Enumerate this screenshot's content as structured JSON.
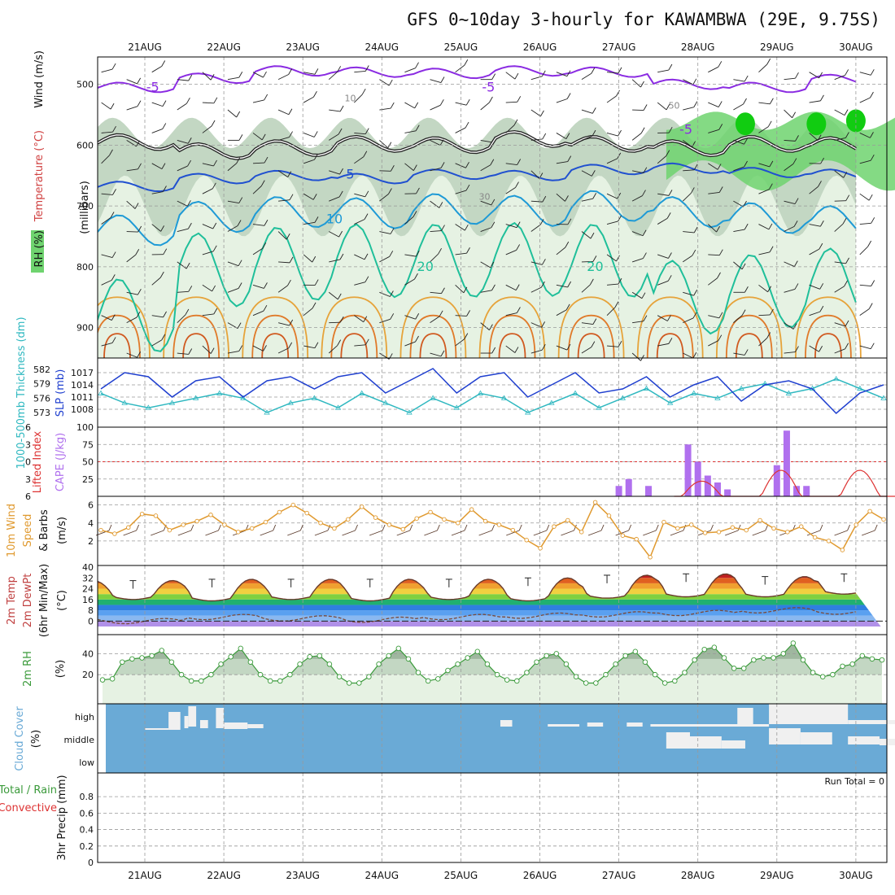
{
  "title": "GFS 0~10day 3-hourly for KAWAMBWA (29E, 9.75S)",
  "dates": [
    "21AUG",
    "22AUG",
    "23AUG",
    "24AUG",
    "25AUG",
    "26AUG",
    "27AUG",
    "28AUG",
    "29AUG",
    "30AUG"
  ],
  "colors": {
    "rh_green_light": "#e6f2e3",
    "rh_green_mid": "#c3d7c3",
    "rh_green_dark": "#9fb79f",
    "rh_green_bright": "#6fd36f",
    "rh_green_max": "#11cc11",
    "slp": "#1f3fcf",
    "thickness": "#2fb8c0",
    "cape": "#b070ee",
    "lifted": "#dd3333",
    "wind10": "#e09a30",
    "rh2m": "#3a9a3a",
    "cloud_bg": "#6aaad6",
    "cloud_fg": "#f0f0f0"
  },
  "chart_data": [
    {
      "type": "contour",
      "panel": "upper_air",
      "ylabel": "(millibars)",
      "ylim": [
        950,
        450
      ],
      "yticks": [
        500,
        600,
        700,
        800,
        900
      ],
      "legend_labels": [
        "Wind (m/s)",
        "Temperature (°C)",
        "RH (%)"
      ],
      "rh_contour_labels": [
        "10",
        "30",
        "50"
      ],
      "temperature_labels": [
        "-5",
        "-5",
        "-5",
        "5",
        "10",
        "20",
        "20"
      ],
      "isotherms": [
        {
          "label": "-5",
          "level": [
            505,
            490,
            478,
            480,
            482,
            478,
            480,
            500,
            505,
            492
          ]
        },
        {
          "label": "0",
          "level": [
            595,
            610,
            605,
            598,
            600,
            590,
            598,
            605,
            598,
            600
          ]
        },
        {
          "label": "5",
          "level": [
            668,
            655,
            650,
            655,
            648,
            650,
            640,
            638,
            645,
            648
          ]
        },
        {
          "label": "10",
          "level": [
            740,
            718,
            710,
            712,
            705,
            708,
            700,
            710,
            720,
            725
          ]
        },
        {
          "label": "20",
          "level": [
            880,
            805,
            795,
            790,
            790,
            788,
            790,
            850,
            840,
            830
          ]
        }
      ]
    },
    {
      "type": "line",
      "panel": "slp_thickness",
      "series": [
        {
          "name": "SLP (mb)",
          "yticks": [
            1008,
            1011,
            1014,
            1017
          ],
          "values": [
            1013,
            1017,
            1016,
            1011,
            1015,
            1016,
            1011,
            1015,
            1016,
            1013,
            1016,
            1017,
            1012,
            1015,
            1018,
            1012,
            1016,
            1017,
            1011,
            1014,
            1017,
            1012,
            1013,
            1016,
            1011,
            1014,
            1016,
            1010,
            1014,
            1015,
            1013,
            1007,
            1012,
            1014
          ]
        },
        {
          "name": "1000-500mb Thickness (dm)",
          "yticks": [
            573,
            576,
            579,
            582
          ],
          "values": [
            577,
            575,
            574,
            575,
            576,
            577,
            576,
            573,
            575,
            576,
            574,
            577,
            575,
            573,
            576,
            574,
            577,
            576,
            573,
            575,
            577,
            574,
            576,
            578,
            575,
            577,
            576,
            578,
            579,
            577,
            578,
            580,
            578,
            576
          ]
        }
      ]
    },
    {
      "type": "bar",
      "panel": "cape_lifted",
      "series": [
        {
          "name": "CAPE (J/kg)",
          "yticks": [
            25,
            50,
            75,
            100
          ],
          "bars": [
            {
              "x": "27AUG 12",
              "v": 15
            },
            {
              "x": "27AUG 15",
              "v": 25
            },
            {
              "x": "27AUG 21",
              "v": 15
            },
            {
              "x": "28AUG 09",
              "v": 75
            },
            {
              "x": "28AUG 12",
              "v": 50
            },
            {
              "x": "28AUG 15",
              "v": 30
            },
            {
              "x": "28AUG 18",
              "v": 20
            },
            {
              "x": "28AUG 21",
              "v": 10
            },
            {
              "x": "29AUG 12",
              "v": 45
            },
            {
              "x": "29AUG 15",
              "v": 95
            },
            {
              "x": "29AUG 18",
              "v": 15
            },
            {
              "x": "29AUG 21",
              "v": 15
            }
          ]
        },
        {
          "name": "Lifted Index",
          "yticks": [
            -6,
            -3,
            0,
            3,
            6
          ],
          "dashed_zero": 0
        }
      ]
    },
    {
      "type": "line",
      "panel": "wind10m",
      "ylabel": "10m Wind Speed & Barbs (m/s)",
      "yticks": [
        2,
        4,
        6
      ],
      "values": [
        3.2,
        2.8,
        3.5,
        5.0,
        4.8,
        3.2,
        3.8,
        4.2,
        4.9,
        3.8,
        3.0,
        3.4,
        4.1,
        5.2,
        6.0,
        5.1,
        4.0,
        3.4,
        4.4,
        5.8,
        4.6,
        3.8,
        3.3,
        4.5,
        5.2,
        4.4,
        4.0,
        5.5,
        4.2,
        3.8,
        3.2,
        2.1,
        1.2,
        3.6,
        4.3,
        3.0,
        6.3,
        4.8,
        2.6,
        2.2,
        0.2,
        4.1,
        3.4,
        3.8,
        2.9,
        3.0,
        3.5,
        3.2,
        4.3,
        3.4,
        3.0,
        3.6,
        2.4,
        2.0,
        1.0,
        3.8,
        5.3,
        4.4
      ]
    },
    {
      "type": "area",
      "panel": "temp2m",
      "ylabel": "2m Temp / 2m DewPt (6hr Min/Max) (°C)",
      "yticks": [
        0,
        8,
        16,
        24,
        32,
        40
      ],
      "temp_min": [
        18,
        17,
        18,
        17,
        18,
        17,
        19,
        20,
        20,
        22
      ],
      "temp_max": [
        30,
        31,
        31,
        31,
        31,
        32,
        34,
        35,
        33,
        35
      ],
      "dewpoint_values": [
        0,
        3,
        2,
        1,
        3,
        4,
        5,
        6,
        8,
        7
      ]
    },
    {
      "type": "area",
      "panel": "rh2m",
      "ylabel": "2m RH (%)",
      "yticks": [
        20,
        40
      ],
      "values": [
        15,
        16,
        32,
        35,
        36,
        38,
        43,
        32,
        20,
        14,
        14,
        20,
        30,
        37,
        45,
        32,
        20,
        14,
        14,
        20,
        30,
        37,
        38,
        30,
        18,
        12,
        12,
        18,
        30,
        38,
        45,
        35,
        22,
        14,
        16,
        24,
        30,
        36,
        42,
        30,
        20,
        15,
        14,
        22,
        32,
        38,
        40,
        30,
        18,
        12,
        12,
        20,
        30,
        38,
        42,
        32,
        20,
        12,
        14,
        22,
        34,
        44,
        46,
        36,
        26,
        26,
        34,
        36,
        36,
        40,
        50,
        34,
        22,
        18,
        20,
        28,
        30,
        38,
        35,
        34
      ]
    },
    {
      "type": "heatmap",
      "panel": "cloud_cover",
      "ylabel": "Cloud Cover (%)",
      "layers": [
        "high",
        "middle",
        "low"
      ],
      "high_columns": [
        {
          "from": "21AUG 12",
          "to": "22AUG 06",
          "v": 0.5
        }
      ],
      "middle_columns": [
        {
          "from": "27AUG 15",
          "to": "30AUG 09",
          "v": 0.6
        }
      ],
      "low_columns": []
    },
    {
      "type": "bar",
      "panel": "precip3hr",
      "ylabel": "3hr Precip (mm)",
      "legend_labels": [
        "Total / Rain",
        "Convective"
      ],
      "ylim": [
        0,
        1
      ],
      "yticks": [
        0,
        0.2,
        0.4,
        0.6,
        0.8
      ],
      "run_total_label": "Run Total = 0",
      "values": []
    }
  ]
}
